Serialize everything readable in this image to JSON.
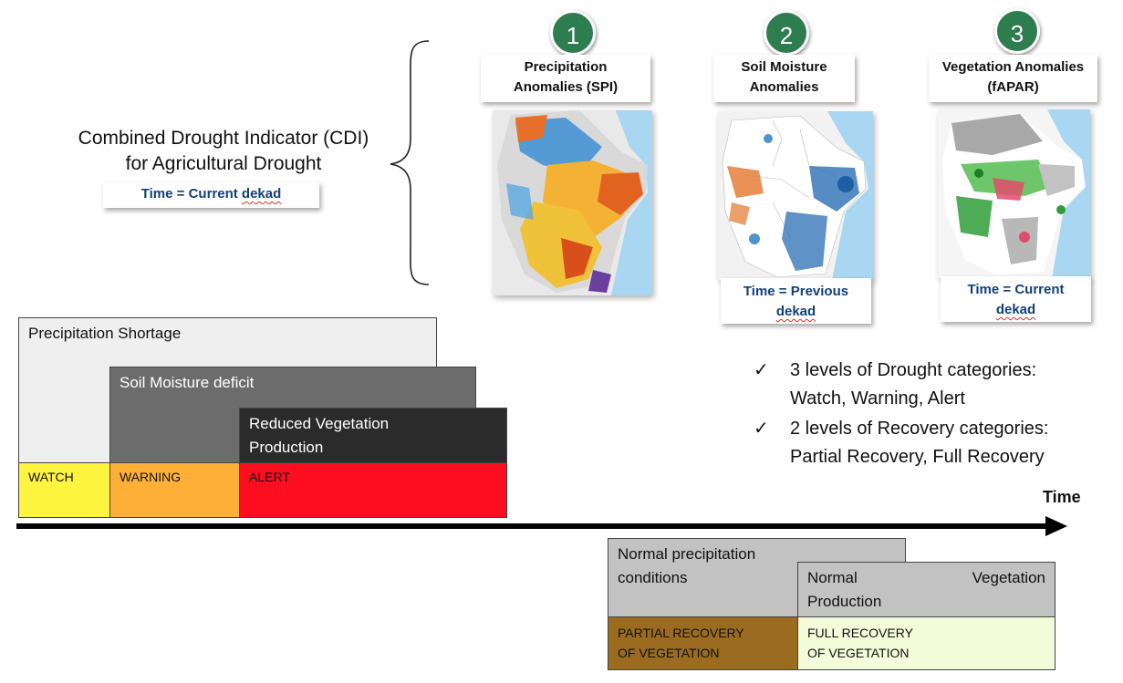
{
  "cdi": {
    "title_line1": "Combined Drought Indicator (CDI)",
    "title_line2": "for Agricultural Drought",
    "time_prefix": "Time = Current ",
    "time_word": "dekad"
  },
  "indicators": [
    {
      "number": "1",
      "title_line1": "Precipitation",
      "title_line2": "Anomalies (SPI)"
    },
    {
      "number": "2",
      "title_line1": "Soil Moisture",
      "title_line2": "Anomalies",
      "time_line1": "Time = Previous",
      "time_line2": "dekad"
    },
    {
      "number": "3",
      "title_line1": "Vegetation Anomalies",
      "title_line2": "(fAPAR)",
      "time_line1": "Time = Current",
      "time_line2": "dekad"
    }
  ],
  "drought_blocks": {
    "precipitation": "Precipitation Shortage",
    "soil": "Soil Moisture deficit",
    "vegetation_line1": "Reduced Vegetation",
    "vegetation_line2": "Production"
  },
  "drought_categories": {
    "watch": "WATCH",
    "warning": "WARNING",
    "alert": "ALERT"
  },
  "timeline_label": "Time",
  "recovery_blocks": {
    "precip_line1": "Normal precipitation",
    "precip_line2": "conditions",
    "veg_word1": "Normal",
    "veg_word2": "Vegetation",
    "veg_line2": "Production"
  },
  "recovery_categories": {
    "partial_line1": "PARTIAL RECOVERY",
    "partial_line2": "OF VEGETATION",
    "full_line1": "FULL RECOVERY",
    "full_line2": "OF VEGETATION"
  },
  "checklist": [
    {
      "mark": "✓",
      "line1": "3 levels of Drought categories:",
      "line2": "Watch, Warning, Alert"
    },
    {
      "mark": "✓",
      "line1": "2 levels of Recovery categories:",
      "line2": "Partial Recovery, Full Recovery"
    }
  ],
  "colors": {
    "watch": "#fef33f",
    "warning": "#fdb035",
    "alert": "#fc0d1f",
    "partial_recovery": "#9b6c20",
    "full_recovery": "#f3fbd8",
    "circle": "#2e7d4f",
    "time_text": "#123f7a"
  },
  "icons": {
    "brace": "left-curly-brace",
    "arrow": "timeline-arrow",
    "check": "check-icon"
  }
}
